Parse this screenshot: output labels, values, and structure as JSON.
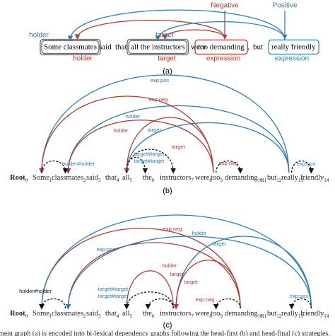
{
  "panel_a": {
    "polarity": [
      "Negative",
      "Positive"
    ],
    "tokens": [
      "Some classmates",
      "said",
      "that",
      "all the instructors",
      "were",
      "too demanding",
      ",",
      "but",
      "really friendly"
    ],
    "span_labels": [
      "holder",
      "target",
      "holder",
      "target",
      "expression",
      "expression"
    ],
    "caption": "(a)"
  },
  "panel_b": {
    "tokens": [
      {
        "word": "Root",
        "index": "0"
      },
      {
        "word": "Some",
        "index": "1"
      },
      {
        "word": "classmates",
        "index": "2"
      },
      {
        "word": "said",
        "index": "3"
      },
      {
        "word": "that",
        "index": "4"
      },
      {
        "word": "all",
        "index": "5"
      },
      {
        "word": "the",
        "index": "6"
      },
      {
        "word": "instructors",
        "index": "7"
      },
      {
        "word": "were",
        "index": "8"
      },
      {
        "word": "too",
        "index": "9"
      },
      {
        "word": "demanding",
        "index": "10"
      },
      {
        "word": ",",
        "index": "11"
      },
      {
        "word": "but",
        "index": "12"
      },
      {
        "word": "really",
        "index": "13"
      },
      {
        "word": "friendly",
        "index": "14"
      }
    ],
    "arc_labels": [
      "exp:pos",
      "exp:neg",
      "holder",
      "holder",
      "target",
      "target",
      "target#target",
      "target#target",
      "holder#holder",
      "exp:neg",
      "exp:pos"
    ],
    "caption": "(b)"
  },
  "panel_c": {
    "tokens": [
      {
        "word": "Root",
        "index": "0"
      },
      {
        "word": "Some",
        "index": "1"
      },
      {
        "word": "classmates",
        "index": "2"
      },
      {
        "word": "said",
        "index": "3"
      },
      {
        "word": "that",
        "index": "4"
      },
      {
        "word": "all",
        "index": "5"
      },
      {
        "word": "the",
        "index": "6"
      },
      {
        "word": "instructors",
        "index": "7"
      },
      {
        "word": "were",
        "index": "8"
      },
      {
        "word": "too",
        "index": "9"
      },
      {
        "word": "demanding",
        "index": "10"
      },
      {
        "word": ",",
        "index": "11"
      },
      {
        "word": "but",
        "index": "12"
      },
      {
        "word": "really",
        "index": "13"
      },
      {
        "word": "friendly",
        "index": "14"
      }
    ],
    "arc_labels": [
      "exp:neg",
      "holder",
      "target",
      "exp:pos",
      "holder",
      "target",
      "target",
      "holder#holder",
      "target#target",
      "target#target",
      "exp:neg",
      "exp:pos"
    ],
    "caption": "(c)"
  },
  "figure_caption": "ment graph (a) is encoded into bi-lexical dependency graphs following the head-first (b) and head-final (c) strategies."
}
